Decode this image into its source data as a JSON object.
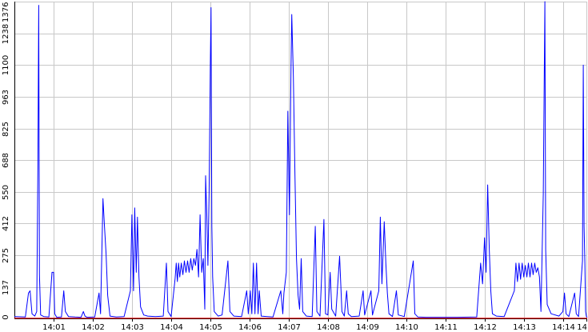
{
  "chart_data": {
    "type": "line",
    "title": "",
    "xlabel": "",
    "ylabel": "",
    "grid": true,
    "ylim": [
      0,
      1376
    ],
    "y_ticks": [
      "0",
      "137",
      "275",
      "412",
      "550",
      "688",
      "825",
      "963",
      "1100",
      "1238",
      "1376"
    ],
    "x_ticks": [
      "14:01",
      "14:02",
      "14:03",
      "14:04",
      "14:05",
      "14:06",
      "14:07",
      "14:08",
      "14:09",
      "14:10",
      "14:11",
      "14:12",
      "14:13",
      "14:14",
      "14"
    ],
    "x_tick_times": [
      1.0,
      2.0,
      3.0,
      4.0,
      5.0,
      6.0,
      7.0,
      8.0,
      9.0,
      10.0,
      11.0,
      12.0,
      13.0,
      14.0,
      14.6
    ],
    "xlim": [
      0.0,
      14.62
    ],
    "colors": {
      "series": "#0000ff",
      "secondary": "#ff0000",
      "grid": "#c8c8c8",
      "axis": "#000000"
    },
    "series": [
      {
        "color": "#0000ff",
        "points": [
          [
            0.0,
            8
          ],
          [
            0.28,
            6
          ],
          [
            0.36,
            110
          ],
          [
            0.4,
            120
          ],
          [
            0.45,
            20
          ],
          [
            0.52,
            10
          ],
          [
            0.57,
            30
          ],
          [
            0.6,
            680
          ],
          [
            0.62,
            1360
          ],
          [
            0.64,
            190
          ],
          [
            0.67,
            15
          ],
          [
            0.75,
            8
          ],
          [
            0.88,
            6
          ],
          [
            0.96,
            200
          ],
          [
            1.0,
            200
          ],
          [
            1.03,
            20
          ],
          [
            1.08,
            5
          ],
          [
            1.2,
            6
          ],
          [
            1.26,
            120
          ],
          [
            1.3,
            30
          ],
          [
            1.38,
            8
          ],
          [
            1.55,
            6
          ],
          [
            1.7,
            5
          ],
          [
            1.76,
            30
          ],
          [
            1.8,
            10
          ],
          [
            1.85,
            5
          ],
          [
            2.05,
            6
          ],
          [
            2.16,
            110
          ],
          [
            2.2,
            20
          ],
          [
            2.26,
            520
          ],
          [
            2.3,
            400
          ],
          [
            2.34,
            280
          ],
          [
            2.38,
            100
          ],
          [
            2.44,
            10
          ],
          [
            2.6,
            6
          ],
          [
            2.8,
            8
          ],
          [
            2.96,
            120
          ],
          [
            3.0,
            450
          ],
          [
            3.04,
            120
          ],
          [
            3.07,
            480
          ],
          [
            3.11,
            200
          ],
          [
            3.14,
            440
          ],
          [
            3.18,
            180
          ],
          [
            3.22,
            50
          ],
          [
            3.3,
            15
          ],
          [
            3.4,
            10
          ],
          [
            3.6,
            8
          ],
          [
            3.8,
            10
          ],
          [
            3.88,
            240
          ],
          [
            3.92,
            30
          ],
          [
            4.0,
            8
          ],
          [
            4.1,
            170
          ],
          [
            4.13,
            240
          ],
          [
            4.16,
            160
          ],
          [
            4.19,
            240
          ],
          [
            4.22,
            180
          ],
          [
            4.26,
            240
          ],
          [
            4.3,
            190
          ],
          [
            4.34,
            250
          ],
          [
            4.38,
            200
          ],
          [
            4.42,
            250
          ],
          [
            4.46,
            200
          ],
          [
            4.5,
            260
          ],
          [
            4.54,
            210
          ],
          [
            4.58,
            260
          ],
          [
            4.62,
            230
          ],
          [
            4.66,
            300
          ],
          [
            4.7,
            180
          ],
          [
            4.74,
            450
          ],
          [
            4.78,
            200
          ],
          [
            4.82,
            260
          ],
          [
            4.86,
            40
          ],
          [
            4.88,
            620
          ],
          [
            4.91,
            450
          ],
          [
            4.94,
            230
          ],
          [
            4.97,
            550
          ],
          [
            5.0,
            1100
          ],
          [
            5.02,
            1350
          ],
          [
            5.04,
            400
          ],
          [
            5.06,
            180
          ],
          [
            5.1,
            30
          ],
          [
            5.2,
            10
          ],
          [
            5.3,
            15
          ],
          [
            5.45,
            250
          ],
          [
            5.5,
            30
          ],
          [
            5.6,
            10
          ],
          [
            5.8,
            8
          ],
          [
            5.93,
            120
          ],
          [
            5.97,
            20
          ],
          [
            6.02,
            120
          ],
          [
            6.06,
            20
          ],
          [
            6.1,
            240
          ],
          [
            6.14,
            20
          ],
          [
            6.18,
            240
          ],
          [
            6.22,
            20
          ],
          [
            6.25,
            120
          ],
          [
            6.3,
            10
          ],
          [
            6.45,
            8
          ],
          [
            6.6,
            6
          ],
          [
            6.8,
            120
          ],
          [
            6.85,
            20
          ],
          [
            6.88,
            110
          ],
          [
            6.94,
            200
          ],
          [
            6.98,
            900
          ],
          [
            7.02,
            450
          ],
          [
            7.06,
            1100
          ],
          [
            7.08,
            1320
          ],
          [
            7.12,
            1050
          ],
          [
            7.16,
            620
          ],
          [
            7.2,
            260
          ],
          [
            7.24,
            100
          ],
          [
            7.28,
            40
          ],
          [
            7.32,
            260
          ],
          [
            7.36,
            30
          ],
          [
            7.45,
            10
          ],
          [
            7.6,
            8
          ],
          [
            7.68,
            400
          ],
          [
            7.72,
            30
          ],
          [
            7.8,
            10
          ],
          [
            7.9,
            430
          ],
          [
            7.94,
            20
          ],
          [
            8.0,
            15
          ],
          [
            8.06,
            200
          ],
          [
            8.1,
            40
          ],
          [
            8.2,
            10
          ],
          [
            8.3,
            270
          ],
          [
            8.36,
            30
          ],
          [
            8.42,
            10
          ],
          [
            8.48,
            120
          ],
          [
            8.52,
            20
          ],
          [
            8.6,
            8
          ],
          [
            8.8,
            10
          ],
          [
            8.9,
            120
          ],
          [
            8.94,
            15
          ],
          [
            9.1,
            120
          ],
          [
            9.14,
            15
          ],
          [
            9.3,
            120
          ],
          [
            9.34,
            440
          ],
          [
            9.38,
            150
          ],
          [
            9.44,
            420
          ],
          [
            9.48,
            240
          ],
          [
            9.52,
            110
          ],
          [
            9.56,
            20
          ],
          [
            9.65,
            8
          ],
          [
            9.75,
            120
          ],
          [
            9.8,
            15
          ],
          [
            9.95,
            8
          ],
          [
            10.18,
            250
          ],
          [
            10.22,
            20
          ],
          [
            10.3,
            6
          ],
          [
            10.5,
            5
          ],
          [
            11.0,
            5
          ],
          [
            11.3,
            5
          ],
          [
            11.8,
            6
          ],
          [
            11.9,
            240
          ],
          [
            11.95,
            150
          ],
          [
            12.0,
            350
          ],
          [
            12.04,
            200
          ],
          [
            12.08,
            580
          ],
          [
            12.12,
            300
          ],
          [
            12.16,
            120
          ],
          [
            12.2,
            20
          ],
          [
            12.3,
            10
          ],
          [
            12.5,
            8
          ],
          [
            12.76,
            120
          ],
          [
            12.8,
            240
          ],
          [
            12.84,
            160
          ],
          [
            12.88,
            240
          ],
          [
            12.92,
            170
          ],
          [
            12.96,
            240
          ],
          [
            13.0,
            180
          ],
          [
            13.04,
            230
          ],
          [
            13.08,
            180
          ],
          [
            13.12,
            240
          ],
          [
            13.16,
            180
          ],
          [
            13.2,
            240
          ],
          [
            13.24,
            190
          ],
          [
            13.28,
            240
          ],
          [
            13.32,
            200
          ],
          [
            13.36,
            220
          ],
          [
            13.4,
            180
          ],
          [
            13.44,
            30
          ],
          [
            13.5,
            540
          ],
          [
            13.54,
            1376
          ],
          [
            13.56,
            300
          ],
          [
            13.6,
            60
          ],
          [
            13.7,
            20
          ],
          [
            13.9,
            10
          ],
          [
            14.0,
            30
          ],
          [
            14.04,
            110
          ],
          [
            14.08,
            20
          ],
          [
            14.15,
            8
          ],
          [
            14.3,
            110
          ],
          [
            14.34,
            20
          ],
          [
            14.4,
            8
          ],
          [
            14.5,
            250
          ],
          [
            14.52,
            1100
          ],
          [
            14.54,
            400
          ],
          [
            14.56,
            240
          ],
          [
            14.58,
            30
          ],
          [
            14.6,
            8
          ],
          [
            14.62,
            5
          ]
        ]
      },
      {
        "color": "#ff0000",
        "points": [
          [
            0.0,
            1
          ],
          [
            14.62,
            1
          ]
        ]
      }
    ]
  }
}
